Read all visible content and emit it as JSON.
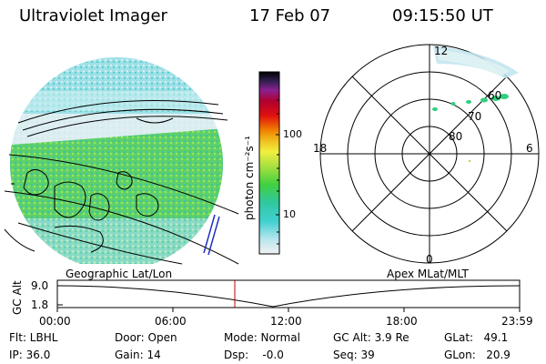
{
  "header": {
    "instrument": "Ultraviolet Imager",
    "date": "17 Feb 07",
    "time": "09:15:50 UT"
  },
  "colorbar": {
    "label": "photon cm⁻²s⁻¹",
    "ticks": [
      "100",
      "10"
    ]
  },
  "polar": {
    "mlt_labels": [
      "12",
      "18",
      "6",
      "0"
    ],
    "lat_labels": [
      "60",
      "70",
      "80"
    ]
  },
  "timeline": {
    "left_title": "Geographic Lat/Lon",
    "right_title": "Apex MLat/MLT",
    "axis_label": "GC Alt",
    "y_ticks": [
      "9.0",
      "1.8"
    ],
    "x_ticks": [
      "00:00",
      "06:00",
      "12:00",
      "18:00",
      "23:59"
    ]
  },
  "status": {
    "flt": "Flt: LBHL",
    "ip": "IP: 36.0",
    "door": "Door: Open",
    "gain": "Gain: 14",
    "mode": "Mode: Normal",
    "dsp": "Dsp:    -0.0",
    "gc_alt": "GC Alt: 3.9 Re",
    "seq": "Seq: 39",
    "glat": "GLat:   49.1",
    "glon": "GLon:   20.9"
  },
  "colors": {
    "orbit_line": "#000000",
    "current_marker": "#c00000"
  }
}
